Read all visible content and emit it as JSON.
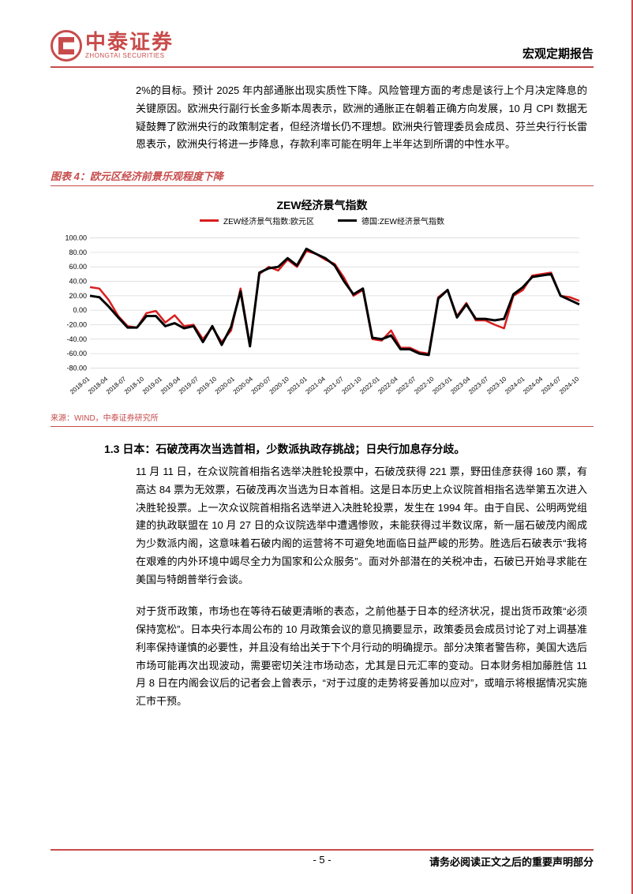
{
  "header": {
    "logo_cn": "中泰证券",
    "logo_en": "ZHONGTAI SECURITIES",
    "doc_type": "宏观定期报告"
  },
  "para1": "2%的目标。预计 2025 年内部通胀出现实质性下降。风险管理方面的考虑是该行上个月决定降息的关键原因。欧洲央行副行长金多斯本周表示，欧洲的通胀正在朝着正确方向发展，10 月 CPI 数据无疑鼓舞了欧洲央行的政策制定者，但经济增长仍不理想。欧洲央行管理委员会成员、芬兰央行行长雷恩表示，欧洲央行将进一步降息，存款利率可能在明年上半年达到所谓的中性水平。",
  "chart": {
    "figure_label": "图表 4：欧元区经济前景乐观程度下降",
    "heading": "ZEW经济景气指数",
    "source": "来源：WIND，中泰证券研究所",
    "legend": [
      {
        "label": "ZEW经济景气指数:欧元区",
        "color": "#d81e1e",
        "width": 2.5
      },
      {
        "label": "德国:ZEW经济景气指数",
        "color": "#000000",
        "width": 3
      }
    ],
    "y_ticks": [
      -80,
      -60,
      -40,
      -20,
      0,
      20,
      40,
      60,
      80,
      100
    ],
    "y_tick_labels": [
      "-80.00",
      "-60.00",
      "-40.00",
      "-20.00",
      "0.00",
      "20.00",
      "40.00",
      "60.00",
      "80.00",
      "100.00"
    ],
    "ylim": [
      -85,
      105
    ],
    "x_labels": [
      "2018-01",
      "2018-04",
      "2018-07",
      "2018-10",
      "2019-01",
      "2019-04",
      "2019-07",
      "2019-10",
      "2020-01",
      "2020-04",
      "2020-07",
      "2020-10",
      "2021-01",
      "2021-04",
      "2021-07",
      "2021-10",
      "2022-01",
      "2022-04",
      "2022-07",
      "2022-10",
      "2023-01",
      "2023-04",
      "2023-07",
      "2023-10",
      "2024-01",
      "2024-04",
      "2024-07",
      "2024-10"
    ],
    "grid_color": "#d9d9d9",
    "bg_color": "#ffffff",
    "series": {
      "eurozone": [
        32,
        30,
        14,
        -8,
        -22,
        -24,
        -4,
        -1,
        -17,
        -7,
        -22,
        -20,
        -40,
        -24,
        -44,
        -28,
        30,
        -48,
        50,
        60,
        55,
        70,
        60,
        82,
        78,
        70,
        64,
        45,
        20,
        28,
        -40,
        -42,
        -28,
        -52,
        -52,
        -58,
        -60,
        18,
        28,
        -8,
        10,
        -14,
        -14,
        -20,
        -25,
        20,
        28,
        48,
        50,
        52,
        20,
        18,
        13
      ],
      "germany": [
        20,
        18,
        5,
        -10,
        -24,
        -24,
        -8,
        -8,
        -22,
        -18,
        -25,
        -22,
        -44,
        -22,
        -48,
        -23,
        26,
        -50,
        52,
        58,
        60,
        72,
        62,
        85,
        78,
        72,
        62,
        40,
        22,
        30,
        -38,
        -40,
        -35,
        -54,
        -54,
        -60,
        -62,
        16,
        28,
        -10,
        8,
        -12,
        -12,
        -14,
        -12,
        22,
        32,
        46,
        48,
        50,
        20,
        14,
        8
      ]
    }
  },
  "section_1_3": {
    "heading": "1.3 日本：石破茂再次当选首相，少数派执政存挑战；日央行加息存分歧。",
    "para_a": "11 月 11 日，在众议院首相指名选举决胜轮投票中，石破茂获得 221 票，野田佳彦获得 160 票，有高达 84 票为无效票，石破茂再次当选为日本首相。这是日本历史上众议院首相指名选举第五次进入决胜轮投票。上一次众议院首相指名选举进入决胜轮投票，发生在 1994 年。由于自民、公明两党组建的执政联盟在 10 月 27 日的众议院选举中遭遇惨败，未能获得过半数议席，新一届石破茂内阁成为少数派内阁，这意味着石破内阁的运营将不可避免地面临日益严峻的形势。胜选后石破表示“我将在艰难的内外环境中竭尽全力为国家和公众服务”。面对外部潜在的关税冲击，石破已开始寻求能在美国与特朗普举行会谈。",
    "para_b": "对于货币政策，市场也在等待石破更清晰的表态，之前他基于日本的经济状况，提出货币政策“必须保持宽松”。日本央行本周公布的 10 月政策会议的意见摘要显示，政策委员会成员讨论了对上调基准利率保持谨慎的必要性，并且没有给出关于下个月行动的明确提示。部分决策者警告称，美国大选后市场可能再次出现波动，需要密切关注市场动态，尤其是日元汇率的变动。日本财务相加藤胜信 11 月 8 日在内阁会议后的记者会上曾表示，“对于过度的走势将妥善加以应对”，或暗示将根据情况实施汇市干预。"
  },
  "footer": {
    "page_num": "- 5 -",
    "disclaimer": "请务必阅读正文之后的重要声明部分"
  }
}
